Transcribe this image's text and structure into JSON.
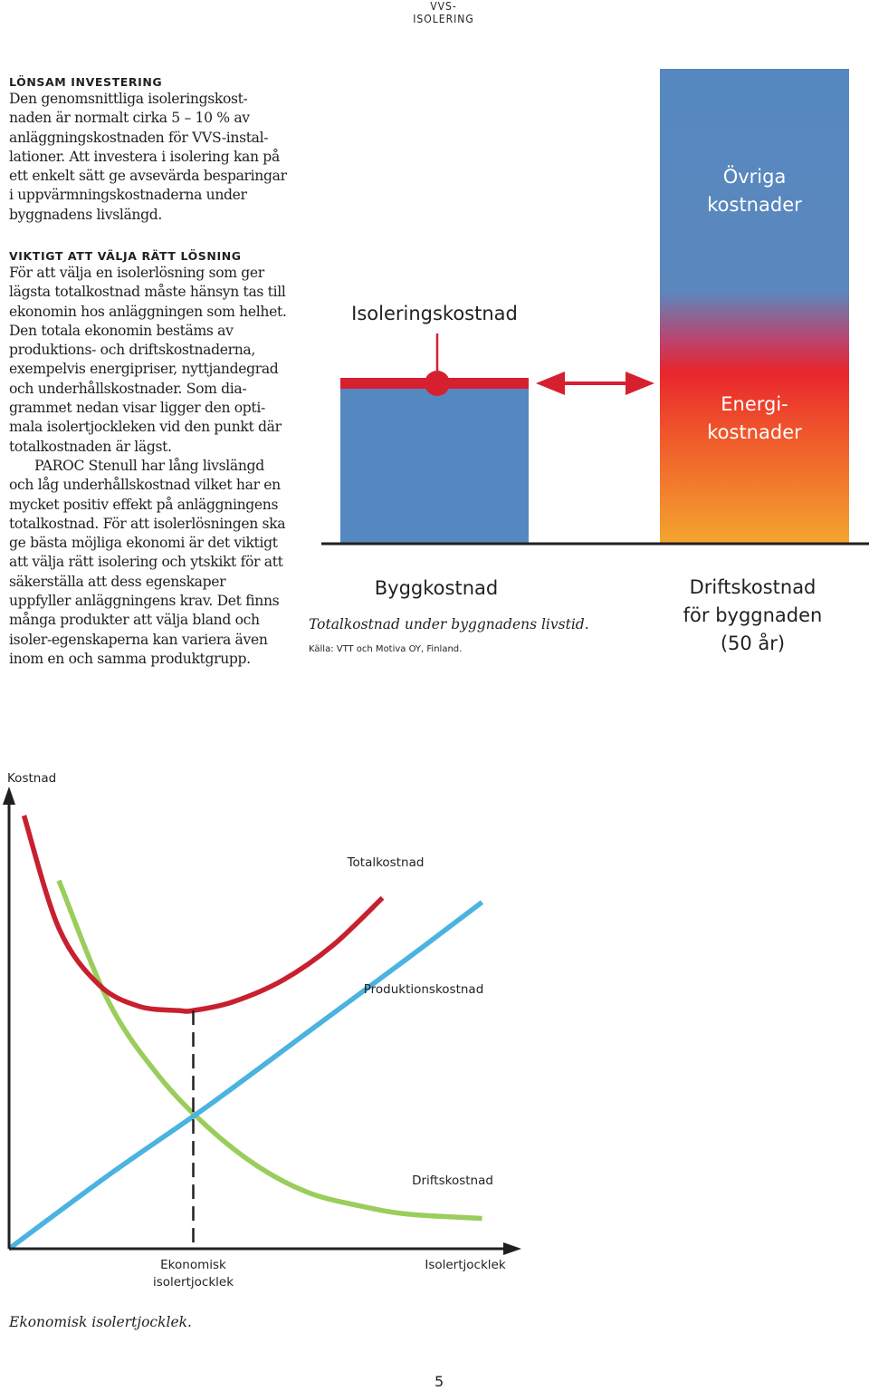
{
  "header": {
    "running_head": "VVS-ISOLERING"
  },
  "sections": [
    {
      "heading": "LÖNSAM INVESTERING",
      "paragraphs": [
        "Den genomsnittliga isoleringskost-naden är normalt cirka 5 – 10 % av anläggningskostnaden för VVS-instal-lationer. Att investera i isolering kan på ett enkelt sätt ge avsevärda besparingar i uppvärmningskostnaderna under byggnadens livslängd."
      ]
    },
    {
      "heading": "VIKTIGT ATT VÄLJA RÄTT LÖSNING",
      "paragraphs": [
        "För att välja en isolerlösning som ger lägsta totalkostnad måste hänsyn tas till ekonomin hos anläggningen som helhet. Den totala ekonomin bestäms av produktions- och driftskostnaderna, exempelvis energipriser, nyttjandegrad och underhållskostnader. Som dia-grammet nedan visar ligger den opti-mala isolertjockleken vid den punkt där totalkostnaden är lägst.",
        "PAROC Stenull har lång livslängd och låg underhållskostnad vilket har en mycket positiv effekt på anläggningens totalkostnad. För att isolerlösningen ska ge bästa möjliga ekonomi är det viktigt att välja rätt isolering och ytskikt för att säkerställa att dess egenskaper uppfyller anläggningens krav. Det finns många produkter att välja bland och isoler-egenskaperna kan variera även inom en och samma produktgrupp."
      ]
    }
  ],
  "cost_figure": {
    "labels": {
      "ovriga": [
        "Övriga",
        "kostnader"
      ],
      "energi": [
        "Energi-",
        "kostnader"
      ],
      "isolering": "Isoleringskostnad",
      "bygg": "Byggkostnad",
      "drift": [
        "Driftskostnad",
        "för byggnaden",
        "(50 år)"
      ]
    },
    "caption": "Totalkostnad under byggnadens livstid.",
    "source": "Källa: VTT och Motiva OY, Finland.",
    "colors": {
      "blue": "#5588c0",
      "red": "#d7202f",
      "orange": "#f3a52f",
      "axis": "#231f20"
    }
  },
  "line_figure": {
    "chart_data": {
      "type": "line",
      "title": "",
      "xlabel": "Isolertjocklek",
      "ylabel": "Kostnad",
      "x_marker_label": "Ekonomisk isolertjocklek",
      "x_marker_lines": [
        "Ekonomisk",
        "isolertjocklek"
      ],
      "x_marker": 0.37,
      "xlim": [
        0,
        1
      ],
      "ylim": [
        0,
        1
      ],
      "grid": false,
      "legend": "none",
      "series": [
        {
          "name": "Totalkostnad",
          "color": "#c8202e",
          "x": [
            0.03,
            0.1,
            0.18,
            0.26,
            0.34,
            0.37,
            0.45,
            0.55,
            0.65,
            0.75
          ],
          "y": [
            1.0,
            0.74,
            0.61,
            0.56,
            0.55,
            0.55,
            0.57,
            0.62,
            0.7,
            0.81
          ]
        },
        {
          "name": "Produktionskostnad",
          "color": "#4bb3e0",
          "x": [
            0.0,
            0.2,
            0.4,
            0.6,
            0.8,
            0.95
          ],
          "y": [
            0.0,
            0.17,
            0.33,
            0.5,
            0.67,
            0.8
          ]
        },
        {
          "name": "Driftskostnad",
          "color": "#9acd5c",
          "x": [
            0.1,
            0.2,
            0.3,
            0.4,
            0.5,
            0.6,
            0.7,
            0.8,
            0.95
          ],
          "y": [
            0.85,
            0.57,
            0.4,
            0.28,
            0.19,
            0.13,
            0.1,
            0.08,
            0.07
          ]
        }
      ]
    },
    "caption": "Ekonomisk isolertjocklek."
  },
  "footer": {
    "page_number": "5"
  }
}
